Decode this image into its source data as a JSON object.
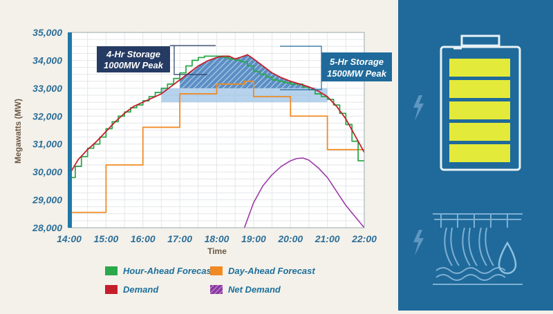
{
  "colors": {
    "hour_ahead": "#2aa84a",
    "day_ahead": "#f08a24",
    "demand": "#c41e2a",
    "net_demand": "#9b3aa6",
    "panel": "#1f6a9a",
    "battery": "#e4ea3a",
    "storage_fill": "#9ec3e6"
  },
  "icons": {
    "panel_top": "battery-icon",
    "panel_bottom": "hydro-dam-icon",
    "lightning": "lightning-icon",
    "water": "water-drop-icon"
  },
  "callouts": {
    "four_hr": [
      "4-Hr Storage",
      "1000MW Peak"
    ],
    "five_hr": [
      "5-Hr Storage",
      "1500MW Peak"
    ]
  },
  "chart_data": {
    "type": "line",
    "xlabel": "Time",
    "ylabel": "Megawatts (MW)",
    "x_ticks": [
      "14:00",
      "15:00",
      "16:00",
      "17:00",
      "18:00",
      "19:00",
      "20:00",
      "21:00",
      "22:00"
    ],
    "y_ticks": [
      "28,000",
      "29,000",
      "30,000",
      "31,000",
      "32,000",
      "33,000",
      "34,000",
      "35,000"
    ],
    "xlim": [
      "14:00",
      "22:00"
    ],
    "ylim": [
      28000,
      35000
    ],
    "grid": true,
    "legend_position": "bottom",
    "series": [
      {
        "name": "Hour-Ahead Forecast",
        "key": "hour_ahead",
        "step": true,
        "x": [
          "14:00",
          "14:10",
          "14:20",
          "14:30",
          "14:40",
          "14:50",
          "15:00",
          "15:10",
          "15:20",
          "15:30",
          "15:40",
          "15:50",
          "16:00",
          "16:10",
          "16:20",
          "16:30",
          "16:40",
          "16:50",
          "17:00",
          "17:10",
          "17:20",
          "17:30",
          "17:40",
          "17:50",
          "18:00",
          "18:10",
          "18:20",
          "18:30",
          "18:40",
          "18:50",
          "19:00",
          "19:10",
          "19:20",
          "19:30",
          "19:40",
          "19:50",
          "20:00",
          "20:10",
          "20:20",
          "20:30",
          "20:40",
          "20:50",
          "21:00",
          "21:10",
          "21:20",
          "21:30",
          "21:40",
          "21:50",
          "22:00"
        ],
        "y": [
          29800,
          30200,
          30550,
          30850,
          31000,
          31250,
          31550,
          31800,
          32000,
          32150,
          32300,
          32400,
          32550,
          32700,
          32850,
          33000,
          33150,
          33350,
          33550,
          33800,
          34000,
          34100,
          34150,
          34150,
          34150,
          34100,
          34050,
          34000,
          33950,
          33800,
          33600,
          33500,
          33400,
          33300,
          33250,
          33200,
          33150,
          33150,
          33050,
          32950,
          32800,
          32700,
          32600,
          32400,
          32100,
          31700,
          31100,
          30400,
          30400
        ]
      },
      {
        "name": "Day-Ahead Forecast",
        "key": "day_ahead",
        "step": true,
        "x": [
          "14:00",
          "15:00",
          "16:00",
          "17:00",
          "18:00",
          "18:15",
          "18:30",
          "18:45",
          "19:00",
          "20:00",
          "21:00",
          "22:00"
        ],
        "y": [
          28550,
          30250,
          31600,
          32800,
          33150,
          33150,
          33150,
          33250,
          32700,
          32000,
          30800,
          30800
        ]
      },
      {
        "name": "Demand",
        "key": "demand",
        "step": false,
        "x": [
          "14:00",
          "14:15",
          "14:30",
          "14:45",
          "15:00",
          "15:15",
          "15:30",
          "15:45",
          "16:00",
          "16:15",
          "16:30",
          "16:45",
          "17:00",
          "17:15",
          "17:30",
          "17:45",
          "18:00",
          "18:10",
          "18:20",
          "18:30",
          "18:40",
          "18:50",
          "19:00",
          "19:15",
          "19:30",
          "19:45",
          "20:00",
          "20:15",
          "20:30",
          "20:45",
          "21:00",
          "21:15",
          "21:30",
          "21:45",
          "22:00"
        ],
        "y": [
          29900,
          30450,
          30800,
          31100,
          31450,
          31800,
          32100,
          32350,
          32500,
          32650,
          32800,
          33050,
          33300,
          33550,
          33800,
          33980,
          34100,
          34150,
          34150,
          34050,
          34120,
          34200,
          34050,
          33800,
          33550,
          33380,
          33250,
          33150,
          33050,
          32900,
          32700,
          32350,
          31900,
          31300,
          30700
        ]
      },
      {
        "name": "Net Demand",
        "key": "net_demand",
        "step": false,
        "x": [
          "18:45",
          "19:00",
          "19:15",
          "19:30",
          "19:45",
          "20:00",
          "20:10",
          "20:20",
          "20:30",
          "20:45",
          "21:00",
          "21:15",
          "21:30",
          "21:45",
          "22:00"
        ],
        "y": [
          28000,
          28900,
          29500,
          29900,
          30200,
          30400,
          30480,
          30500,
          30420,
          30150,
          29800,
          29300,
          28800,
          28400,
          28000
        ]
      }
    ]
  },
  "chart_legend": [
    {
      "label": "Hour-Ahead Forecast",
      "key": "hour_ahead"
    },
    {
      "label": "Day-Ahead Forecast",
      "key": "day_ahead"
    },
    {
      "label": "Demand",
      "key": "demand"
    },
    {
      "label": "Net Demand",
      "key": "net_demand",
      "hatched": true
    }
  ]
}
